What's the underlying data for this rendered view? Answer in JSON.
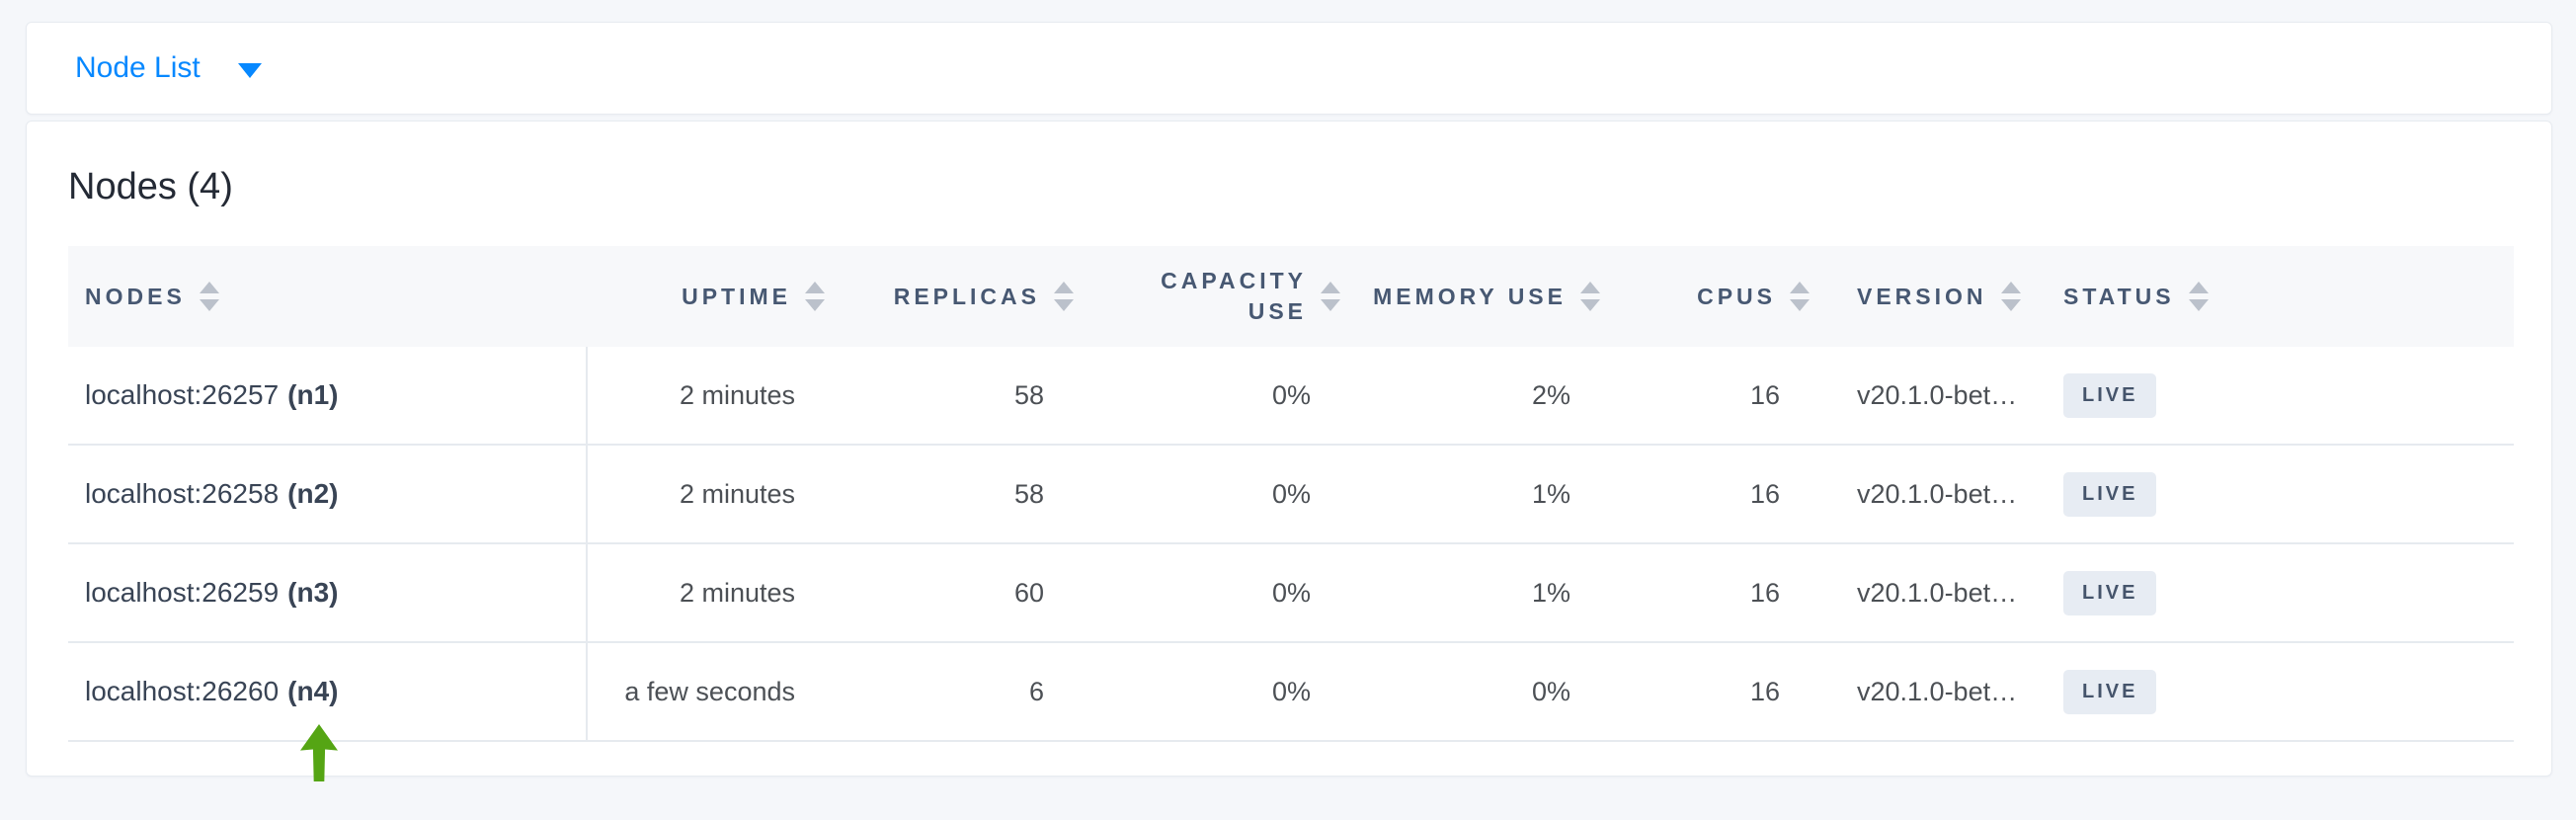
{
  "topbar": {
    "dropdown_label": "Node List"
  },
  "panel": {
    "title": "Nodes (4)"
  },
  "table": {
    "columns": [
      {
        "label": "NODES"
      },
      {
        "label": "UPTIME"
      },
      {
        "label": "REPLICAS"
      },
      {
        "label": "CAPACITY USE"
      },
      {
        "label": "MEMORY USE"
      },
      {
        "label": "CPUS"
      },
      {
        "label": "VERSION"
      },
      {
        "label": "STATUS"
      }
    ],
    "rows": [
      {
        "node": "localhost:26257",
        "node_id": "(n1)",
        "uptime": "2 minutes",
        "replicas": "58",
        "capacity_use": "0%",
        "memory_use": "2%",
        "cpus": "16",
        "version": "v20.1.0-bet…",
        "status": "LIVE"
      },
      {
        "node": "localhost:26258",
        "node_id": "(n2)",
        "uptime": "2 minutes",
        "replicas": "58",
        "capacity_use": "0%",
        "memory_use": "1%",
        "cpus": "16",
        "version": "v20.1.0-bet…",
        "status": "LIVE"
      },
      {
        "node": "localhost:26259",
        "node_id": "(n3)",
        "uptime": "2 minutes",
        "replicas": "60",
        "capacity_use": "0%",
        "memory_use": "1%",
        "cpus": "16",
        "version": "v20.1.0-bet…",
        "status": "LIVE"
      },
      {
        "node": "localhost:26260",
        "node_id": "(n4)",
        "uptime": "a few seconds",
        "replicas": "6",
        "capacity_use": "0%",
        "memory_use": "0%",
        "cpus": "16",
        "version": "v20.1.0-bet…",
        "status": "LIVE"
      }
    ]
  },
  "annotation": {
    "points_at": "localhost:26260 (n4)",
    "arrow_color": "#55a514"
  },
  "colors": {
    "accent_blue": "#0788ff",
    "page_background": "#f5f7fa",
    "header_text": "#475872",
    "badge_background": "#e7ecf3",
    "badge_text": "#45546b"
  }
}
